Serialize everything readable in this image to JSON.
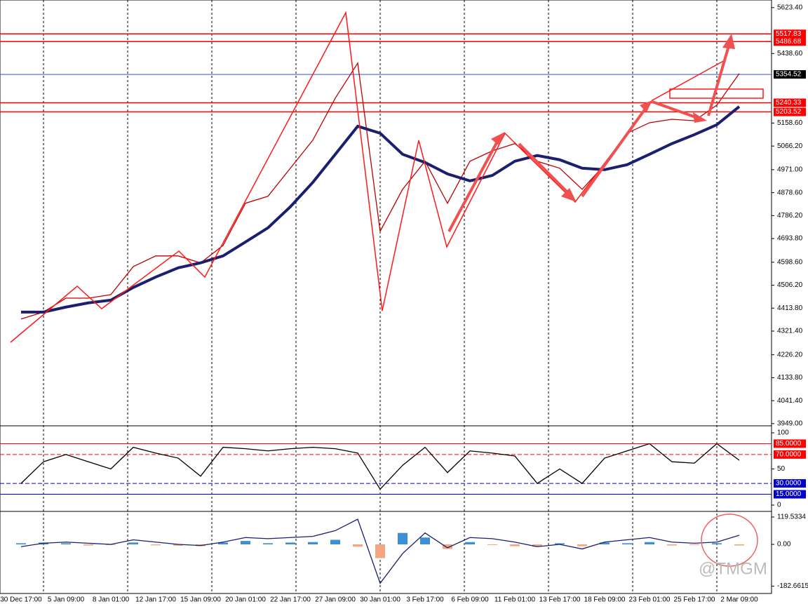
{
  "chart_data": [
    {
      "type": "line",
      "panel": "price",
      "categories": [
        "30 Dec 17:00",
        null,
        "5 Jan 09:00",
        null,
        "8 Jan 01:00",
        null,
        "12 Jan 17:00",
        null,
        "15 Jan 09:00",
        null,
        "20 Jan 01:00",
        null,
        "22 Jan 17:00",
        null,
        "27 Jan 09:00",
        null,
        "30 Jan 01:00",
        null,
        "3 Feb 17:00",
        null,
        "6 Feb 09:00",
        null,
        "11 Feb 01:00",
        null,
        "13 Feb 17:00",
        null,
        "18 Feb 09:00",
        null,
        "23 Feb 01:00",
        null,
        "25 Feb 17:00",
        null,
        "2 Mar 09:00"
      ],
      "series": [
        {
          "color": "#c00000",
          "values": [
            4370,
            4398,
            4454,
            4454,
            4468,
            4581,
            4624,
            4624,
            4596,
            4666,
            4836,
            4864,
            4977,
            5090,
            5259,
            5400,
            4723,
            4892,
            5005,
            4836,
            5005,
            5047,
            5076,
            5005,
            4977,
            4892,
            4991,
            5118,
            5160,
            5174,
            5168,
            5231,
            5358
          ]
        },
        {
          "color": "#1a1f6e",
          "values": [
            4398,
            4398,
            4418,
            4435,
            4446,
            4497,
            4539,
            4576,
            4596,
            4624,
            4680,
            4737,
            4822,
            4920,
            5033,
            5146,
            5118,
            5033,
            5000,
            4954,
            4926,
            4948,
            5005,
            5028,
            5011,
            4977,
            4971,
            4991,
            5033,
            5076,
            5112,
            5152,
            5225
          ]
        }
      ],
      "ylim": [
        3943,
        5654
      ],
      "yticks": [
        {
          "value": 5623.4,
          "label": "5623.40"
        },
        {
          "value": 5438.6,
          "label": "5438.60"
        },
        {
          "value": 5158.6,
          "label": "5158.60"
        },
        {
          "value": 5066.2,
          "label": "5066.20"
        },
        {
          "value": 4971,
          "label": "4971.00"
        },
        {
          "value": 4878.6,
          "label": "4878.60"
        },
        {
          "value": 4786.2,
          "label": "4786.20"
        },
        {
          "value": 4693.8,
          "label": "4693.80"
        },
        {
          "value": 4598.6,
          "label": "4598.60"
        },
        {
          "value": 4506.2,
          "label": "4506.20"
        },
        {
          "value": 4413.8,
          "label": "4413.80"
        },
        {
          "value": 4321.4,
          "label": "4321.40"
        },
        {
          "value": 4226.2,
          "label": "4226.20"
        },
        {
          "value": 4133.8,
          "label": "4133.80"
        },
        {
          "value": 4041.4,
          "label": "4041.40"
        },
        {
          "value": 3949,
          "label": "3949.00"
        }
      ],
      "hlines": [
        {
          "value": 5517.83,
          "color": "#ff0000"
        },
        {
          "value": 5486.68,
          "color": "#ff0000"
        },
        {
          "value": 5354.52,
          "color": "#000000"
        },
        {
          "value": 5240.33,
          "color": "#ff0000"
        },
        {
          "value": 5203.52,
          "color": "#ff0000"
        }
      ]
    },
    {
      "type": "line",
      "panel": "rsi",
      "series": [
        {
          "color": "#000000",
          "values": [
            30,
            60,
            70,
            60,
            50,
            80,
            72,
            65,
            40,
            80,
            78,
            75,
            78,
            80,
            78,
            72,
            22,
            55,
            80,
            45,
            75,
            72,
            68,
            30,
            50,
            30,
            65,
            75,
            85,
            60,
            58,
            85,
            62
          ]
        }
      ],
      "ylim": [
        0,
        100
      ],
      "yticks": [
        100,
        50,
        0
      ],
      "hlines": [
        {
          "value": 85,
          "label": "85.0000",
          "color": "#ff0000"
        },
        {
          "value": 70,
          "label": "70.0000",
          "color": "#ff0000"
        },
        {
          "value": 30,
          "label": "30.0000",
          "color": "#0000cc"
        },
        {
          "value": 15,
          "label": "15.0000",
          "color": "#0000cc"
        }
      ]
    },
    {
      "type": "macd",
      "panel": "macd",
      "series": [
        {
          "color": "#1a1f6e",
          "values": [
            -10,
            5,
            10,
            5,
            0,
            20,
            10,
            0,
            -5,
            10,
            30,
            25,
            30,
            35,
            60,
            110,
            -170,
            -40,
            50,
            -15,
            30,
            25,
            10,
            -10,
            0,
            -20,
            10,
            20,
            30,
            10,
            5,
            10,
            40
          ]
        }
      ],
      "histogram": [
        5,
        8,
        5,
        -5,
        -3,
        8,
        -4,
        -6,
        -8,
        8,
        15,
        5,
        8,
        10,
        20,
        -10,
        -60,
        50,
        30,
        -20,
        10,
        -3,
        -8,
        -10,
        5,
        -8,
        8,
        5,
        10,
        -5,
        -3,
        5,
        -5
      ],
      "colors": [
        "#3c8fd6",
        "#f4a582"
      ],
      "ylim": [
        -226.8,
        134.9
      ],
      "yticks": [
        {
          "value": 119.5334,
          "label": "119.5334"
        },
        {
          "value": 0,
          "label": "0.00"
        },
        {
          "value": -182.6615,
          "label": "-182.6615"
        }
      ]
    }
  ],
  "watermark": "@TMGM"
}
